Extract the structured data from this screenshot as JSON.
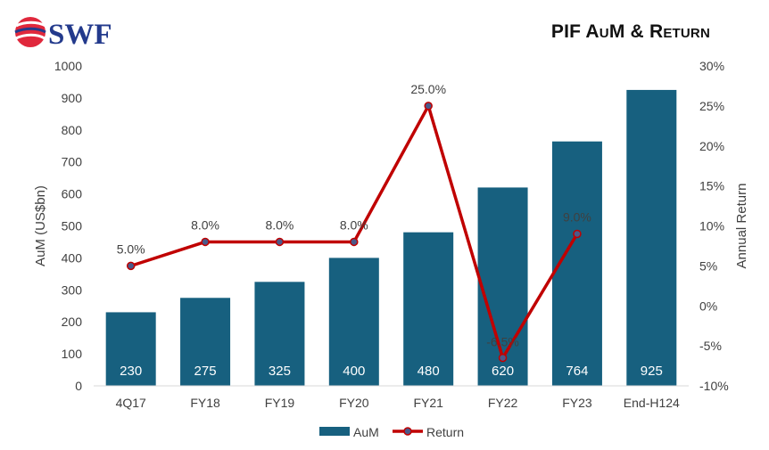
{
  "brand": {
    "logo_text": "SWF",
    "colors": {
      "navy": "#233a8c",
      "red": "#e0283c"
    }
  },
  "chart_data": {
    "type": "bar+line",
    "title": "PIF AuM & Return",
    "categories": [
      "4Q17",
      "FY18",
      "FY19",
      "FY20",
      "FY21",
      "FY22",
      "FY23",
      "End-H124"
    ],
    "series": [
      {
        "name": "AuM",
        "type": "bar",
        "axis": "left",
        "color": "#17607f",
        "values": [
          230,
          275,
          325,
          400,
          480,
          620,
          764,
          925
        ],
        "labels": [
          "230",
          "275",
          "325",
          "400",
          "480",
          "620",
          "764",
          "925"
        ]
      },
      {
        "name": "Return",
        "type": "line",
        "axis": "right",
        "color": "#c00000",
        "marker_color": "#4a5a8a",
        "values": [
          5.0,
          8.0,
          8.0,
          8.0,
          25.0,
          -6.5,
          9.0,
          null
        ],
        "labels": [
          "5.0%",
          "8.0%",
          "8.0%",
          "8.0%",
          "25.0%",
          "-6.5%",
          "9.0%",
          null
        ]
      }
    ],
    "ylabel": "AuM (US$bn)",
    "y2label": "Annual Return",
    "ylim": [
      0,
      1000
    ],
    "yticks": [
      "0",
      "100",
      "200",
      "300",
      "400",
      "500",
      "600",
      "700",
      "800",
      "900",
      "1000"
    ],
    "y2lim": [
      -10,
      30
    ],
    "y2ticks": [
      "-10%",
      "-5%",
      "0%",
      "5%",
      "10%",
      "15%",
      "20%",
      "25%",
      "30%"
    ],
    "grid": false,
    "legend": "bottom-center"
  }
}
